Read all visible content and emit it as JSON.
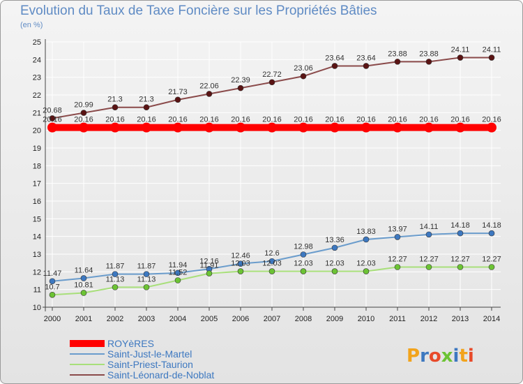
{
  "chart_data": {
    "type": "line",
    "title": "Evolution du Taux de Taxe Foncière sur les Propriétés Bâties",
    "ylabel": "(en %)",
    "xlabel": "",
    "ylim": [
      10,
      25
    ],
    "yticks": [
      10,
      11,
      12,
      13,
      14,
      15,
      16,
      17,
      18,
      19,
      20,
      21,
      22,
      23,
      24,
      25
    ],
    "categories": [
      "2000",
      "2001",
      "2002",
      "2003",
      "2004",
      "2005",
      "2006",
      "2007",
      "2008",
      "2009",
      "2010",
      "2011",
      "2012",
      "2013",
      "2014"
    ],
    "series": [
      {
        "name": "ROYèRES",
        "color": "#ff0000",
        "marker": "#ff0000",
        "values": [
          20.16,
          20.16,
          20.16,
          20.16,
          20.16,
          20.16,
          20.16,
          20.16,
          20.16,
          20.16,
          20.16,
          20.16,
          20.16,
          20.16,
          20.16
        ],
        "labels": [
          "20.16",
          "20.16",
          "20.16",
          "20.16",
          "20.16",
          "20.16",
          "20.16",
          "20.16",
          "20.16",
          "20.16",
          "20.16",
          "20.16",
          "20.16",
          "20.16",
          "20.16"
        ]
      },
      {
        "name": "Saint-Just-le-Martel",
        "color": "#6a9ccc",
        "marker": "#3d78c0",
        "values": [
          11.47,
          11.64,
          11.87,
          11.87,
          11.94,
          12.16,
          12.46,
          12.6,
          12.98,
          13.36,
          13.83,
          13.97,
          14.11,
          14.18,
          14.18
        ],
        "labels": [
          "11.47",
          "11.64",
          "11.87",
          "11.87",
          "11.94",
          "12.16",
          "12.46",
          "12.6",
          "12.98",
          "13.36",
          "13.83",
          "13.97",
          "14.11",
          "14.18",
          "14.18"
        ]
      },
      {
        "name": "Saint-Priest-Taurion",
        "color": "#a8df7a",
        "marker": "#6cc334",
        "values": [
          10.7,
          10.81,
          11.13,
          11.13,
          11.52,
          11.91,
          12.03,
          12.03,
          12.03,
          12.03,
          12.03,
          12.27,
          12.27,
          12.27,
          12.27
        ],
        "labels": [
          "10.7",
          "10.81",
          "11.13",
          "11.13",
          "11.52",
          "11.91",
          "12.03",
          "12.03",
          "12.03",
          "12.03",
          "12.03",
          "12.27",
          "12.27",
          "12.27",
          "12.27"
        ]
      },
      {
        "name": "Saint-Léonard-de-Noblat",
        "color": "#8a4a4a",
        "marker": "#5a1414",
        "values": [
          20.68,
          20.99,
          21.3,
          21.3,
          21.73,
          22.06,
          22.39,
          22.72,
          23.06,
          23.64,
          23.64,
          23.88,
          23.88,
          24.11,
          24.11
        ],
        "labels": [
          "20.68",
          "20.99",
          "21.3",
          "21.3",
          "21.73",
          "22.06",
          "22.39",
          "22.72",
          "23.06",
          "23.64",
          "23.64",
          "23.88",
          "23.88",
          "24.11",
          "24.11"
        ]
      }
    ],
    "legend_position": "bottom-left",
    "watermark": "Proxiti"
  }
}
